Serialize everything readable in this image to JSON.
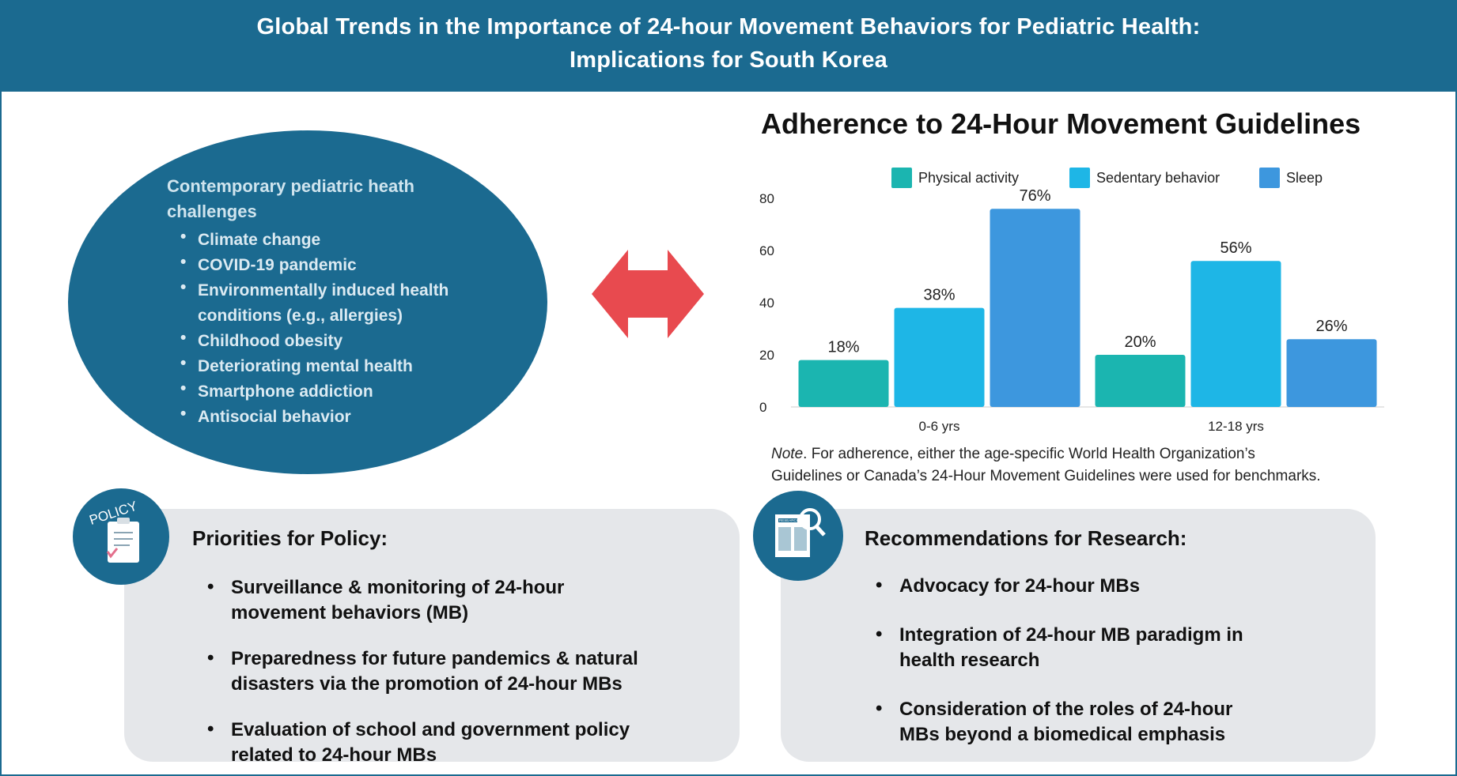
{
  "header": {
    "title_line1": "Global Trends in the Importance of 24-hour Movement Behaviors for Pediatric Health:",
    "title_line2": "Implications for South Korea"
  },
  "challenges": {
    "title": "Contemporary pediatric heath challenges",
    "title_line1": "Contemporary pediatric heath",
    "title_line2": "challenges",
    "items": [
      "Climate change",
      "COVID-19 pandemic",
      "Environmentally induced health conditions (e.g., allergies)",
      "Childhood obesity",
      "Deteriorating mental health",
      "Smartphone addiction",
      "Antisocial behavior"
    ],
    "item_lines": [
      [
        "Climate change"
      ],
      [
        "COVID-19 pandemic"
      ],
      [
        "Environmentally induced health",
        "conditions (e.g., allergies)"
      ],
      [
        "Childhood obesity"
      ],
      [
        "Deteriorating mental health"
      ],
      [
        "Smartphone addiction"
      ],
      [
        "Antisocial behavior"
      ]
    ]
  },
  "chart_data": {
    "type": "bar",
    "title": "Adherence to 24-Hour Movement Guidelines",
    "categories": [
      "0-6 yrs",
      "12-18 yrs"
    ],
    "series": [
      {
        "name": "Physical activity",
        "values": [
          18,
          20
        ],
        "labels": [
          "18%",
          "20%"
        ],
        "color": "#1bb5b0"
      },
      {
        "name": "Sedentary behavior",
        "values": [
          38,
          56
        ],
        "labels": [
          "38%",
          "56%"
        ],
        "color": "#1eb6e6"
      },
      {
        "name": "Sleep",
        "values": [
          76,
          26
        ],
        "labels": [
          "76%",
          "26%"
        ],
        "color": "#3d97de"
      }
    ],
    "ylim": [
      0,
      80
    ],
    "yticks": [
      0,
      20,
      40,
      60,
      80
    ],
    "xlabel": "",
    "ylabel": "",
    "legend_position": "top",
    "grid": false
  },
  "note": {
    "label": "Note",
    "text": ". For adherence, either the age-specific World Health Organization's Guidelines or Canada's 24-Hour Movement Guidelines were used for benchmarks.",
    "line1": ". For adherence, either the age-specific World Health Organization’s",
    "line2": "Guidelines or Canada’s 24-Hour Movement Guidelines were used for benchmarks."
  },
  "policy": {
    "icon_text": "POLICY",
    "title": "Priorities for Policy:",
    "items": [
      "Surveillance & monitoring of 24-hour movement behaviors (MB)",
      "Preparedness for future pandemics & natural disasters via the promotion of 24-hour MBs",
      "Evaluation of school and government policy related to 24-hour MBs"
    ],
    "item_lines": [
      [
        "Surveillance & monitoring of 24-hour",
        "movement behaviors (MB)"
      ],
      [
        "Preparedness for future pandemics & natural",
        "disasters via the promotion of 24-hour MBs"
      ],
      [
        "Evaluation of school and government policy",
        "related to 24-hour MBs"
      ]
    ]
  },
  "research": {
    "icon_text": "RESEARCH",
    "title": "Recommendations for Research:",
    "items": [
      "Advocacy for 24-hour MBs",
      "Integration of 24-hour MB paradigm in health research",
      "Consideration of the roles of 24-hour MBs beyond a biomedical emphasis"
    ],
    "item_lines": [
      [
        "Advocacy for 24-hour MBs"
      ],
      [
        "Integration of 24-hour MB paradigm in",
        "health research"
      ],
      [
        "Consideration of the roles of 24-hour",
        "MBs beyond a biomedical emphasis"
      ]
    ]
  },
  "colors": {
    "primary": "#1b6a90",
    "card_bg": "#e5e7ea",
    "arrow": "#e84a4f"
  }
}
